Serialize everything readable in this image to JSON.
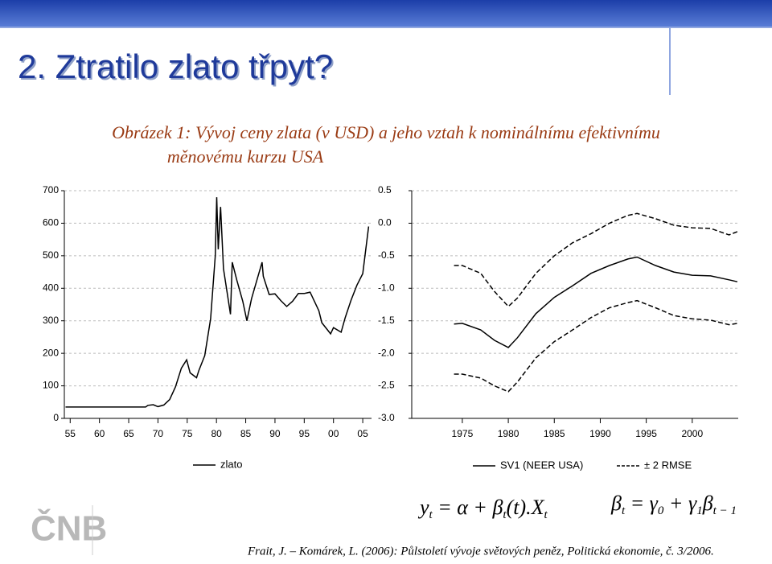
{
  "slide_title": "2. Ztratilo zlato třpyt?",
  "caption": [
    "Obrázek 1: Vývoj ceny zlata (v USD) a jeho vztah k nominálnímu efektivnímu",
    "měnovému kurzu USA"
  ],
  "logo": "ČNB",
  "formulas": [
    [
      {
        "t": "y"
      },
      {
        "s": "t"
      },
      {
        "t": " = α + β"
      },
      {
        "s": "t"
      },
      {
        "t": "(t).X"
      },
      {
        "s": "t"
      }
    ],
    [
      {
        "t": "β"
      },
      {
        "s": "t"
      },
      {
        "t": " = γ"
      },
      {
        "s": "0"
      },
      {
        "t": " + γ"
      },
      {
        "s": "1"
      },
      {
        "t": "β"
      },
      {
        "s": "t − 1"
      }
    ]
  ],
  "citation": "Frait, J. – Komárek, L. (2006): Půlstoletí vývoje světových peněz, Politická ekonomie, č. 3/2006.",
  "chart_data": [
    {
      "type": "line",
      "x": [
        1954.2,
        1967.9,
        1968.3,
        1969.2,
        1970,
        1971,
        1972,
        1973,
        1974,
        1974.9,
        1975.5,
        1976.6,
        1977,
        1978,
        1979,
        1979.8,
        1980.05,
        1980.3,
        1980.7,
        1981.2,
        1982.4,
        1982.7,
        1983.5,
        1984.5,
        1985.2,
        1986,
        1987.8,
        1988,
        1989,
        1990,
        1991,
        1992,
        1993,
        1994,
        1995,
        1996,
        1997.5,
        1998,
        1999.5,
        2000,
        2001.3,
        2002,
        2003,
        2004,
        2005,
        2006
      ],
      "series": [
        {
          "name": "zlato",
          "color": "#000000",
          "style": "solid",
          "values": [
            35,
            35,
            40,
            42,
            36,
            41,
            58,
            97,
            154,
            180,
            140,
            125,
            148,
            193,
            306,
            500,
            680,
            520,
            650,
            460,
            320,
            480,
            424,
            360,
            300,
            368,
            480,
            437,
            381,
            383,
            362,
            344,
            360,
            384,
            384,
            388,
            331,
            294,
            260,
            279,
            265,
            310,
            363,
            409,
            445,
            590
          ]
        }
      ],
      "xlim": [
        1954,
        2006.5
      ],
      "xticks": [
        {
          "value": 1955,
          "label": "55"
        },
        {
          "value": 1960,
          "label": "60"
        },
        {
          "value": 1965,
          "label": "65"
        },
        {
          "value": 1970,
          "label": "70"
        },
        {
          "value": 1975,
          "label": "75"
        },
        {
          "value": 1980,
          "label": "80"
        },
        {
          "value": 1985,
          "label": "85"
        },
        {
          "value": 1990,
          "label": "90"
        },
        {
          "value": 1995,
          "label": "95"
        },
        {
          "value": 2000,
          "label": "00"
        },
        {
          "value": 2005,
          "label": "05"
        }
      ],
      "ylim": [
        0,
        700
      ],
      "yticks": [
        0,
        100,
        200,
        300,
        400,
        500,
        600,
        700
      ],
      "grid": true
    },
    {
      "type": "line",
      "x": [
        1974.1,
        1975,
        1977,
        1978.5,
        1980,
        1981,
        1983,
        1985,
        1987,
        1989,
        1991,
        1993,
        1994,
        1996,
        1998,
        2000,
        2002,
        2004,
        2004.9
      ],
      "series": [
        {
          "name": "SV1 (NEER USA)",
          "color": "#000000",
          "style": "solid",
          "values": [
            -1.55,
            -1.54,
            -1.64,
            -1.8,
            -1.91,
            -1.76,
            -1.39,
            -1.14,
            -0.96,
            -0.77,
            -0.65,
            -0.55,
            -0.52,
            -0.65,
            -0.75,
            -0.8,
            -0.81,
            -0.87,
            -0.9
          ]
        },
        {
          "name": "± 2 RMSE",
          "color": "#000000",
          "style": "dashed",
          "upper": [
            -0.65,
            -0.65,
            -0.77,
            -1.05,
            -1.28,
            -1.15,
            -0.77,
            -0.5,
            -0.3,
            -0.16,
            0.0,
            0.12,
            0.15,
            0.07,
            -0.03,
            -0.07,
            -0.08,
            -0.18,
            -0.13
          ],
          "lower": [
            -2.32,
            -2.32,
            -2.38,
            -2.5,
            -2.59,
            -2.44,
            -2.07,
            -1.82,
            -1.64,
            -1.45,
            -1.3,
            -1.22,
            -1.19,
            -1.3,
            -1.42,
            -1.47,
            -1.49,
            -1.56,
            -1.54
          ]
        }
      ],
      "xlim": [
        1969.5,
        2005
      ],
      "xticks": [
        1975,
        1980,
        1985,
        1990,
        1995,
        2000
      ],
      "ylim": [
        -3,
        0.5
      ],
      "yticks": [
        {
          "value": -3,
          "label": "-3.0"
        },
        -2.5,
        {
          "value": -2,
          "label": "-2.0"
        },
        -1.5,
        {
          "value": -1,
          "label": "-1.0"
        },
        -0.5,
        {
          "value": 0,
          "label": "0.0"
        },
        0.5
      ],
      "grid": true
    }
  ]
}
